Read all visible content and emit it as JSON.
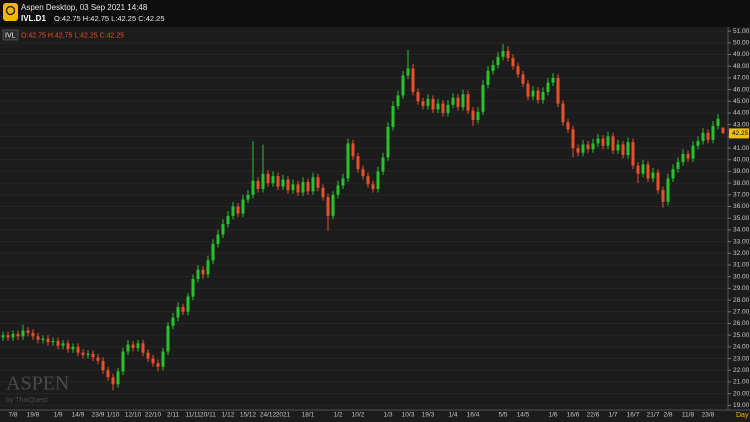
{
  "header": {
    "title": "Aspen Desktop, 03 Sep 2021 14:48",
    "symbol": "IVL.D1",
    "ohlc": "O:42.75 H:42.75 L:42.25 C:42.25"
  },
  "chart_data": {
    "type": "candlestick",
    "symbol_label": "IVL",
    "ohlc_label": "O:42.75 H:42.75 L:42.25 C:42.25",
    "watermark": "ASPEN",
    "watermark_sub": "by ThaiQuest",
    "period": "Day",
    "up_color": "#27c32c",
    "down_color": "#e8502a",
    "grid": true,
    "ylim": [
      18.6,
      51.35
    ],
    "yticks": [
      {
        "value": 19,
        "label": "19.00"
      },
      {
        "value": 20,
        "label": "20.00"
      },
      {
        "value": 21,
        "label": "21.00"
      },
      {
        "value": 22,
        "label": "22.00"
      },
      {
        "value": 23,
        "label": "23.00"
      },
      {
        "value": 24,
        "label": "24.00"
      },
      {
        "value": 25,
        "label": "25.00"
      },
      {
        "value": 26,
        "label": "26.00"
      },
      {
        "value": 27,
        "label": "27.00"
      },
      {
        "value": 28,
        "label": "28.00"
      },
      {
        "value": 29,
        "label": "29.00"
      },
      {
        "value": 30,
        "label": "30.00"
      },
      {
        "value": 31,
        "label": "31.00"
      },
      {
        "value": 32,
        "label": "32.00"
      },
      {
        "value": 33,
        "label": "33.00"
      },
      {
        "value": 34,
        "label": "34.00"
      },
      {
        "value": 35,
        "label": "35.00"
      },
      {
        "value": 36,
        "label": "36.00"
      },
      {
        "value": 37,
        "label": "37.00"
      },
      {
        "value": 38,
        "label": "38.00"
      },
      {
        "value": 39,
        "label": "39.00"
      },
      {
        "value": 40,
        "label": "40.00"
      },
      {
        "value": 41,
        "label": "41.00"
      },
      {
        "value": 42,
        "label": "42.00"
      },
      {
        "value": 43,
        "label": "43.00"
      },
      {
        "value": 44,
        "label": "44.00"
      },
      {
        "value": 45,
        "label": "45.00"
      },
      {
        "value": 46,
        "label": "46.00"
      },
      {
        "value": 47,
        "label": "47.00"
      },
      {
        "value": 48,
        "label": "48.00"
      },
      {
        "value": 49,
        "label": "49.00"
      },
      {
        "value": 50,
        "label": "50.00"
      },
      {
        "value": 51,
        "label": "51.00"
      }
    ],
    "categories": [
      null,
      null,
      "7/8",
      null,
      null,
      null,
      "19/8",
      null,
      null,
      null,
      null,
      "1/9",
      null,
      null,
      null,
      "14/9",
      null,
      null,
      null,
      "23/9",
      null,
      null,
      "1/10",
      null,
      null,
      null,
      "12/10",
      null,
      null,
      null,
      "22/10",
      null,
      null,
      null,
      "2/11",
      null,
      null,
      null,
      "11/11",
      null,
      null,
      "20/11",
      null,
      null,
      null,
      "1/12",
      null,
      null,
      null,
      "15/12",
      null,
      null,
      null,
      "24/12",
      null,
      null,
      "2021",
      null,
      null,
      null,
      null,
      "18/1",
      null,
      null,
      null,
      null,
      null,
      "1/2",
      null,
      null,
      null,
      "10/2",
      null,
      null,
      null,
      null,
      null,
      "1/3",
      null,
      null,
      null,
      "10/3",
      null,
      null,
      null,
      "19/3",
      null,
      null,
      null,
      null,
      "1/4",
      null,
      null,
      null,
      "16/4",
      null,
      null,
      null,
      null,
      null,
      "5/5",
      null,
      null,
      null,
      "14/5",
      null,
      null,
      null,
      null,
      null,
      "1/6",
      null,
      null,
      null,
      "16/6",
      null,
      null,
      null,
      "22/6",
      null,
      null,
      null,
      "1/7",
      null,
      null,
      null,
      "16/7",
      null,
      null,
      null,
      "21/7",
      null,
      null,
      "2/8",
      null,
      null,
      null,
      "11/8",
      null,
      null,
      null,
      "23/8",
      null,
      null,
      null
    ],
    "candles": [
      [
        24.8,
        25.3,
        24.5,
        25.0
      ],
      [
        25.0,
        25.3,
        24.5,
        24.8
      ],
      [
        24.8,
        25.4,
        24.5,
        25.1
      ],
      [
        25.1,
        25.4,
        24.6,
        24.9
      ],
      [
        24.9,
        25.9,
        24.6,
        25.4
      ],
      [
        25.4,
        25.7,
        24.9,
        25.2
      ],
      [
        25.2,
        25.5,
        24.6,
        24.9
      ],
      [
        24.9,
        25.2,
        24.3,
        24.6
      ],
      [
        24.6,
        25.0,
        24.3,
        24.7
      ],
      [
        24.7,
        25.0,
        24.1,
        24.4
      ],
      [
        24.4,
        24.8,
        24.1,
        24.5
      ],
      [
        24.5,
        24.8,
        23.8,
        24.1
      ],
      [
        24.1,
        24.6,
        23.8,
        24.3
      ],
      [
        24.3,
        24.6,
        23.5,
        23.8
      ],
      [
        23.8,
        24.3,
        23.5,
        24.0
      ],
      [
        24.0,
        24.3,
        23.2,
        23.5
      ],
      [
        23.5,
        23.8,
        23.0,
        23.3
      ],
      [
        23.3,
        23.7,
        23.0,
        23.4
      ],
      [
        23.4,
        23.7,
        22.8,
        23.1
      ],
      [
        23.1,
        23.4,
        22.5,
        22.8
      ],
      [
        22.8,
        23.1,
        21.7,
        22.0
      ],
      [
        22.0,
        22.3,
        21.1,
        21.4
      ],
      [
        21.4,
        21.7,
        20.3,
        20.8
      ],
      [
        20.8,
        22.2,
        20.5,
        21.9
      ],
      [
        21.9,
        23.9,
        21.6,
        23.6
      ],
      [
        23.6,
        24.6,
        23.3,
        24.2
      ],
      [
        24.2,
        24.5,
        23.6,
        23.9
      ],
      [
        23.9,
        24.6,
        23.6,
        24.3
      ],
      [
        24.3,
        24.6,
        23.2,
        23.5
      ],
      [
        23.5,
        23.8,
        22.7,
        23.0
      ],
      [
        23.0,
        23.3,
        22.3,
        22.6
      ],
      [
        22.6,
        22.9,
        21.9,
        22.3
      ],
      [
        22.3,
        23.9,
        22.0,
        23.6
      ],
      [
        23.6,
        26.1,
        23.3,
        25.8
      ],
      [
        25.8,
        26.9,
        25.5,
        26.5
      ],
      [
        26.5,
        27.8,
        26.2,
        27.4
      ],
      [
        27.4,
        27.7,
        26.7,
        27.0
      ],
      [
        27.0,
        28.6,
        26.7,
        28.3
      ],
      [
        28.3,
        30.2,
        28.0,
        29.8
      ],
      [
        29.8,
        31.0,
        29.5,
        30.6
      ],
      [
        30.6,
        30.9,
        29.8,
        30.2
      ],
      [
        30.2,
        31.8,
        29.9,
        31.4
      ],
      [
        31.4,
        33.2,
        31.1,
        32.8
      ],
      [
        32.8,
        34.0,
        32.5,
        33.6
      ],
      [
        33.6,
        34.9,
        33.3,
        34.5
      ],
      [
        34.5,
        35.6,
        34.2,
        35.2
      ],
      [
        35.2,
        36.4,
        34.9,
        36.0
      ],
      [
        36.0,
        36.3,
        35.1,
        35.4
      ],
      [
        35.4,
        37.0,
        35.1,
        36.6
      ],
      [
        36.6,
        37.4,
        36.3,
        37.0
      ],
      [
        37.0,
        41.6,
        36.7,
        38.2
      ],
      [
        38.2,
        38.5,
        37.2,
        37.5
      ],
      [
        37.5,
        41.3,
        37.2,
        38.8
      ],
      [
        38.8,
        39.1,
        37.7,
        38.0
      ],
      [
        38.0,
        39.0,
        37.7,
        38.6
      ],
      [
        38.6,
        38.9,
        37.4,
        37.7
      ],
      [
        37.7,
        38.7,
        37.4,
        38.3
      ],
      [
        38.3,
        38.6,
        37.1,
        37.4
      ],
      [
        37.4,
        38.3,
        37.1,
        37.9
      ],
      [
        37.9,
        38.2,
        36.9,
        37.2
      ],
      [
        37.2,
        38.5,
        36.9,
        38.1
      ],
      [
        38.1,
        38.4,
        37.0,
        37.3
      ],
      [
        37.3,
        38.9,
        37.0,
        38.5
      ],
      [
        38.5,
        38.8,
        37.3,
        37.6
      ],
      [
        37.6,
        37.9,
        36.5,
        36.8
      ],
      [
        36.8,
        37.1,
        33.9,
        35.2
      ],
      [
        35.2,
        37.3,
        34.9,
        37.0
      ],
      [
        37.0,
        38.2,
        36.7,
        37.8
      ],
      [
        37.8,
        38.8,
        37.5,
        38.4
      ],
      [
        38.4,
        41.8,
        38.1,
        41.4
      ],
      [
        41.4,
        41.7,
        40.0,
        40.3
      ],
      [
        40.3,
        40.6,
        38.9,
        39.2
      ],
      [
        39.2,
        39.5,
        38.3,
        38.6
      ],
      [
        38.6,
        38.9,
        37.6,
        37.9
      ],
      [
        37.9,
        38.2,
        37.2,
        37.5
      ],
      [
        37.5,
        39.4,
        37.2,
        39.0
      ],
      [
        39.0,
        40.6,
        38.7,
        40.2
      ],
      [
        40.2,
        43.2,
        39.9,
        42.8
      ],
      [
        42.8,
        45.0,
        42.5,
        44.6
      ],
      [
        44.6,
        45.9,
        44.3,
        45.5
      ],
      [
        45.5,
        47.6,
        45.2,
        47.2
      ],
      [
        47.2,
        49.4,
        46.9,
        47.8
      ],
      [
        47.8,
        48.2,
        45.5,
        45.8
      ],
      [
        45.8,
        46.1,
        44.7,
        45.0
      ],
      [
        45.0,
        45.3,
        44.3,
        44.6
      ],
      [
        44.6,
        45.6,
        44.3,
        45.2
      ],
      [
        45.2,
        45.5,
        44.0,
        44.3
      ],
      [
        44.3,
        45.2,
        44.0,
        44.8
      ],
      [
        44.8,
        45.1,
        43.7,
        44.0
      ],
      [
        44.0,
        45.1,
        43.7,
        44.7
      ],
      [
        44.7,
        45.7,
        44.4,
        45.3
      ],
      [
        45.3,
        45.6,
        44.2,
        44.5
      ],
      [
        44.5,
        46.0,
        44.2,
        45.6
      ],
      [
        45.6,
        45.9,
        43.9,
        44.2
      ],
      [
        44.2,
        44.5,
        42.9,
        43.4
      ],
      [
        43.4,
        44.5,
        43.1,
        44.1
      ],
      [
        44.1,
        46.8,
        43.8,
        46.4
      ],
      [
        46.4,
        48.0,
        46.1,
        47.6
      ],
      [
        47.6,
        48.5,
        47.3,
        48.1
      ],
      [
        48.1,
        49.2,
        47.8,
        48.8
      ],
      [
        48.8,
        49.9,
        48.5,
        49.3
      ],
      [
        49.3,
        49.7,
        48.4,
        48.7
      ],
      [
        48.7,
        49.0,
        47.7,
        48.0
      ],
      [
        48.0,
        48.3,
        47.0,
        47.3
      ],
      [
        47.3,
        47.6,
        46.2,
        46.5
      ],
      [
        46.5,
        46.8,
        45.1,
        45.4
      ],
      [
        45.4,
        46.3,
        45.1,
        45.9
      ],
      [
        45.9,
        46.2,
        44.8,
        45.1
      ],
      [
        45.1,
        46.2,
        44.8,
        45.8
      ],
      [
        45.8,
        47.0,
        45.5,
        46.6
      ],
      [
        46.6,
        47.4,
        46.3,
        47.0
      ],
      [
        47.0,
        47.3,
        44.5,
        44.8
      ],
      [
        44.8,
        45.1,
        42.9,
        43.2
      ],
      [
        43.2,
        43.5,
        42.3,
        42.6
      ],
      [
        42.6,
        42.9,
        40.2,
        41.0
      ],
      [
        41.0,
        41.3,
        40.3,
        40.6
      ],
      [
        40.6,
        41.7,
        40.3,
        41.3
      ],
      [
        41.3,
        41.6,
        40.6,
        40.9
      ],
      [
        40.9,
        41.8,
        40.6,
        41.4
      ],
      [
        41.4,
        42.2,
        41.1,
        41.8
      ],
      [
        41.8,
        42.1,
        40.9,
        41.2
      ],
      [
        41.2,
        42.4,
        40.9,
        42.0
      ],
      [
        42.0,
        42.3,
        40.5,
        40.8
      ],
      [
        40.8,
        41.7,
        40.5,
        41.3
      ],
      [
        41.3,
        41.6,
        40.1,
        40.4
      ],
      [
        40.4,
        41.9,
        40.1,
        41.5
      ],
      [
        41.5,
        41.8,
        39.2,
        39.5
      ],
      [
        39.5,
        39.8,
        38.0,
        38.8
      ],
      [
        38.8,
        40.0,
        38.5,
        39.6
      ],
      [
        39.6,
        39.9,
        38.1,
        38.4
      ],
      [
        38.4,
        39.3,
        38.1,
        38.9
      ],
      [
        38.9,
        39.2,
        37.1,
        37.4
      ],
      [
        37.4,
        37.7,
        35.9,
        36.4
      ],
      [
        36.4,
        38.8,
        36.1,
        38.4
      ],
      [
        38.4,
        39.6,
        38.1,
        39.2
      ],
      [
        39.2,
        40.2,
        38.9,
        39.8
      ],
      [
        39.8,
        40.9,
        39.5,
        40.5
      ],
      [
        40.5,
        40.8,
        39.8,
        40.1
      ],
      [
        40.1,
        41.6,
        39.8,
        41.2
      ],
      [
        41.2,
        42.0,
        40.9,
        41.6
      ],
      [
        41.6,
        42.7,
        41.3,
        42.3
      ],
      [
        42.3,
        42.6,
        41.4,
        41.7
      ],
      [
        41.7,
        43.3,
        41.4,
        42.9
      ],
      [
        42.9,
        43.9,
        42.6,
        43.5
      ],
      [
        42.75,
        42.75,
        42.25,
        42.25
      ]
    ]
  }
}
